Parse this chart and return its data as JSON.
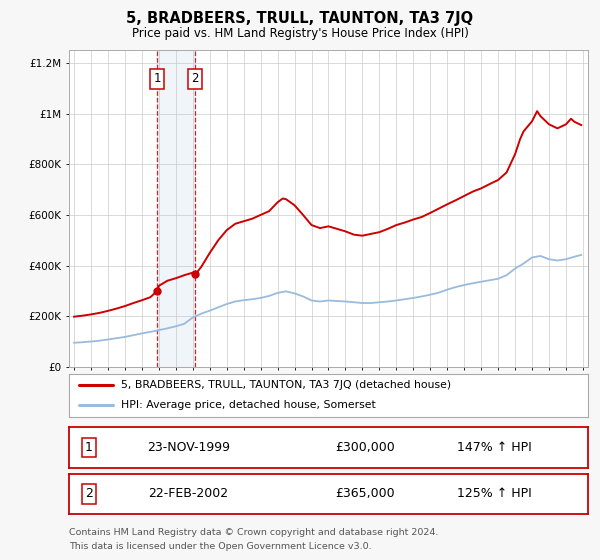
{
  "title": "5, BRADBEERS, TRULL, TAUNTON, TA3 7JQ",
  "subtitle": "Price paid vs. HM Land Registry's House Price Index (HPI)",
  "background_color": "#f7f7f7",
  "plot_bg_color": "#ffffff",
  "grid_color": "#cccccc",
  "red_color": "#cc0000",
  "blue_color": "#99bbdd",
  "sale1_date": 1999.9,
  "sale1_price": 300000,
  "sale2_date": 2002.15,
  "sale2_price": 365000,
  "legend_line1": "5, BRADBEERS, TRULL, TAUNTON, TA3 7JQ (detached house)",
  "legend_line2": "HPI: Average price, detached house, Somerset",
  "footer1": "Contains HM Land Registry data © Crown copyright and database right 2024.",
  "footer2": "This data is licensed under the Open Government Licence v3.0.",
  "table_row1_num": "1",
  "table_row1_date": "23-NOV-1999",
  "table_row1_price": "£300,000",
  "table_row1_pct": "147% ↑ HPI",
  "table_row2_num": "2",
  "table_row2_date": "22-FEB-2002",
  "table_row2_price": "£365,000",
  "table_row2_pct": "125% ↑ HPI",
  "ylim_max": 1250000,
  "xmin": 1995,
  "xmax": 2025
}
